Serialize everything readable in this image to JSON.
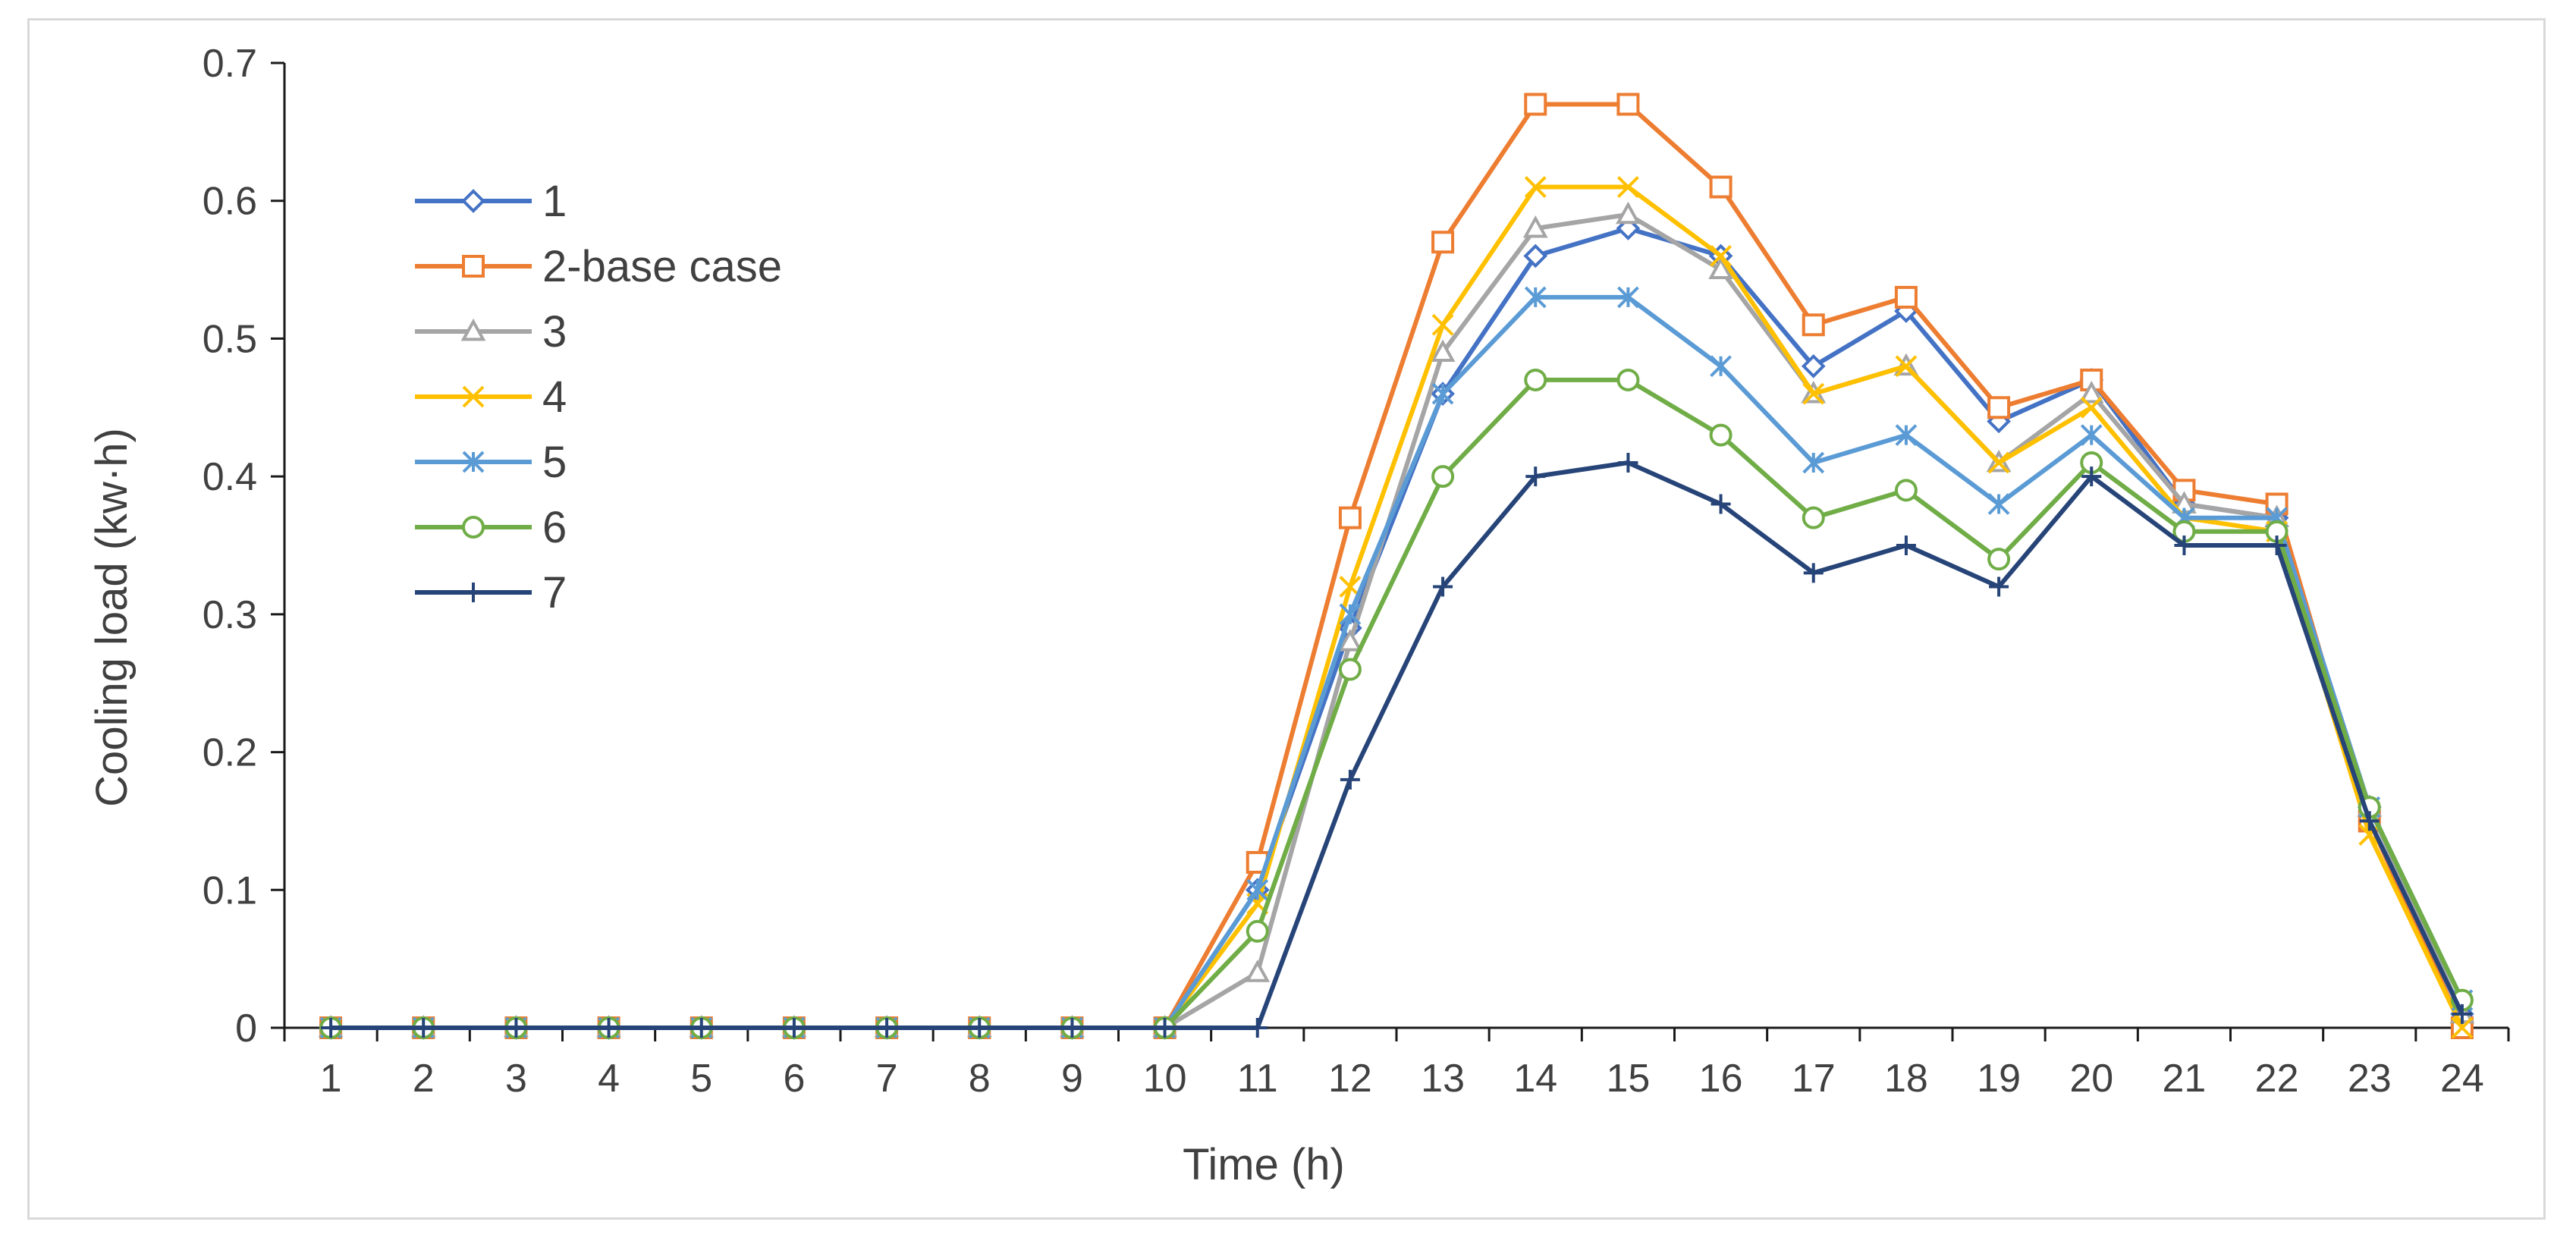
{
  "chart_data": {
    "type": "line",
    "title": "",
    "xlabel": "Time (h)",
    "ylabel": "Cooling load (kw·h)",
    "categories": [
      "1",
      "2",
      "3",
      "4",
      "5",
      "6",
      "7",
      "8",
      "9",
      "10",
      "11",
      "12",
      "13",
      "14",
      "15",
      "16",
      "17",
      "18",
      "19",
      "20",
      "21",
      "22",
      "23",
      "24"
    ],
    "yticks": [
      "0",
      "0.1",
      "0.2",
      "0.3",
      "0.4",
      "0.5",
      "0.6",
      "0.7"
    ],
    "ylim": [
      0,
      0.7
    ],
    "grid": false,
    "legend_position": "top-left",
    "series": [
      {
        "name": "1",
        "color": "#4472C4",
        "marker": "diamond",
        "values": [
          0,
          0,
          0,
          0,
          0,
          0,
          0,
          0,
          0,
          0,
          0.1,
          0.29,
          0.46,
          0.56,
          0.58,
          0.56,
          0.48,
          0.52,
          0.44,
          0.47,
          0.38,
          0.37,
          0.16,
          0.01
        ]
      },
      {
        "name": "2-base case",
        "color": "#ED7D31",
        "marker": "square",
        "values": [
          0,
          0,
          0,
          0,
          0,
          0,
          0,
          0,
          0,
          0,
          0.12,
          0.37,
          0.57,
          0.67,
          0.67,
          0.61,
          0.51,
          0.53,
          0.45,
          0.47,
          0.39,
          0.38,
          0.15,
          0
        ]
      },
      {
        "name": "3",
        "color": "#A5A5A5",
        "marker": "triangle",
        "values": [
          0,
          0,
          0,
          0,
          0,
          0,
          0,
          0,
          0,
          0,
          0.04,
          0.28,
          0.49,
          0.58,
          0.59,
          0.55,
          0.46,
          0.48,
          0.41,
          0.46,
          0.38,
          0.37,
          0.16,
          0.01
        ]
      },
      {
        "name": "4",
        "color": "#FFC000",
        "marker": "x",
        "values": [
          0,
          0,
          0,
          0,
          0,
          0,
          0,
          0,
          0,
          0,
          0.09,
          0.32,
          0.51,
          0.61,
          0.61,
          0.56,
          0.46,
          0.48,
          0.41,
          0.45,
          0.37,
          0.36,
          0.14,
          0
        ]
      },
      {
        "name": "5",
        "color": "#5B9BD5",
        "marker": "asterisk",
        "values": [
          0,
          0,
          0,
          0,
          0,
          0,
          0,
          0,
          0,
          0,
          0.1,
          0.3,
          0.46,
          0.53,
          0.53,
          0.48,
          0.41,
          0.43,
          0.38,
          0.43,
          0.37,
          0.37,
          0.16,
          0.02
        ]
      },
      {
        "name": "6",
        "color": "#70AD47",
        "marker": "circle",
        "values": [
          0,
          0,
          0,
          0,
          0,
          0,
          0,
          0,
          0,
          0,
          0.07,
          0.26,
          0.4,
          0.47,
          0.47,
          0.43,
          0.37,
          0.39,
          0.34,
          0.41,
          0.36,
          0.36,
          0.16,
          0.02
        ]
      },
      {
        "name": "7",
        "color": "#264478",
        "marker": "plus",
        "values": [
          0,
          0,
          0,
          0,
          0,
          0,
          0,
          0,
          0,
          0,
          0,
          0.18,
          0.32,
          0.4,
          0.41,
          0.38,
          0.33,
          0.35,
          0.32,
          0.4,
          0.35,
          0.35,
          0.15,
          0.01
        ]
      }
    ]
  }
}
